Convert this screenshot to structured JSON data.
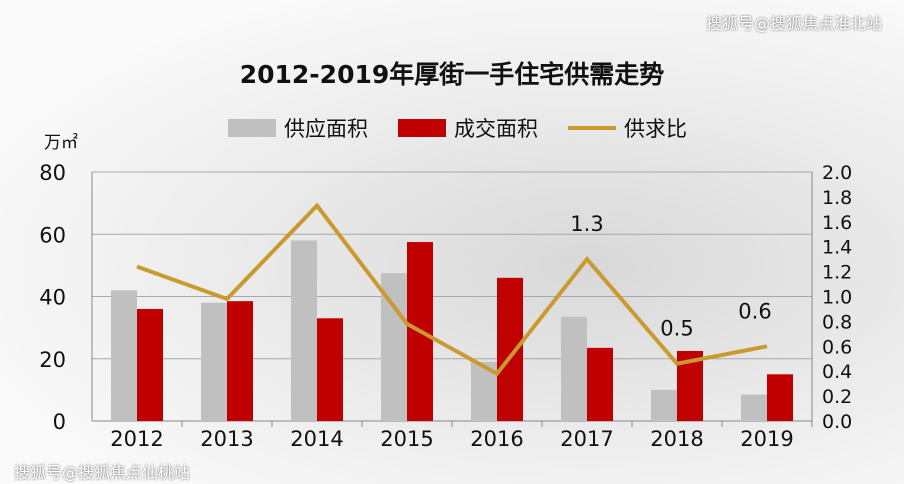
{
  "watermark_top": "搜狐号@搜狐焦点淮北站",
  "watermark_bottom": "搜狐号@搜狐焦点仙桃站",
  "chart_data": {
    "type": "bar",
    "title": "2012-2019年厚街一手住宅供需走势",
    "ylabel": "万㎡",
    "categories": [
      "2012",
      "2013",
      "2014",
      "2015",
      "2016",
      "2017",
      "2018",
      "2019"
    ],
    "ylim": [
      0,
      80
    ],
    "y2lim": [
      0,
      2.0
    ],
    "yticks": [
      "0",
      "20",
      "40",
      "60",
      "80"
    ],
    "y2ticks": [
      "0.0",
      "0.2",
      "0.4",
      "0.6",
      "0.8",
      "1.0",
      "1.2",
      "1.4",
      "1.6",
      "1.8",
      "2.0"
    ],
    "grid": true,
    "legend_position": "top",
    "series": [
      {
        "name": "供应面积",
        "type": "bar",
        "axis": "left",
        "color": "#c0c0c0",
        "values": [
          42,
          38,
          58,
          47.5,
          19,
          33.5,
          10,
          8.5
        ]
      },
      {
        "name": "成交面积",
        "type": "bar",
        "axis": "left",
        "color": "#c00000",
        "values": [
          36,
          38.5,
          33,
          57.5,
          46,
          23.5,
          22.5,
          15
        ]
      },
      {
        "name": "供求比",
        "type": "line",
        "axis": "right",
        "color": "#c99a2e",
        "values": [
          1.24,
          0.98,
          1.73,
          0.78,
          0.38,
          1.3,
          0.46,
          0.6
        ]
      }
    ],
    "annotations": [
      {
        "category": "2017",
        "text": "1.3"
      },
      {
        "category": "2018",
        "text": "0.5"
      },
      {
        "category": "2019",
        "text": "0.6"
      }
    ]
  }
}
